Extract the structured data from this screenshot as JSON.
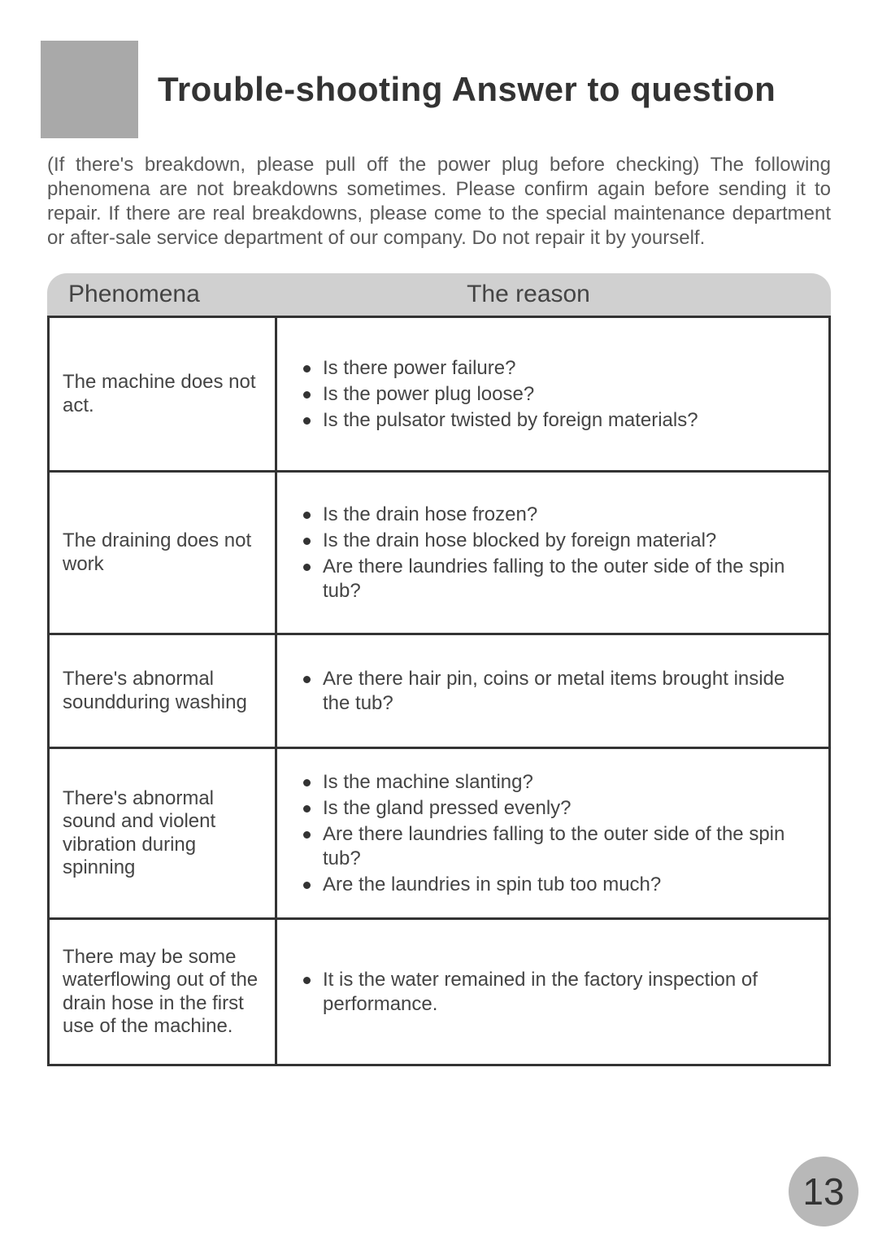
{
  "title": "Trouble-shooting  Answer  to question",
  "intro": "(If  there's  breakdown,  please pull  off the power  plug  before checking) The following phenomena  are not  breakdowns  sometimes.  Please  confirm  again  before sending it to repair.   If there are real  breakdowns,  please  come to  the  special  maintenance department or after-sale service department of our company. Do not repair it by yourself.",
  "table": {
    "header_left": "Phenomena",
    "header_right": "The reason",
    "rows": [
      {
        "phenomenon": "The machine does not act.",
        "reasons": [
          "Is there power failure?",
          "Is the power plug loose?",
          "Is the pulsator twisted by foreign materials?"
        ]
      },
      {
        "phenomenon": "The draining does not work",
        "reasons": [
          "Is the drain hose frozen?",
          "Is the drain hose blocked by foreign material?",
          "Are there laundries falling to the outer side of the spin tub?"
        ]
      },
      {
        "phenomenon": "There's abnormal soundduring washing",
        "reasons": [
          "Are there hair pin, coins or metal items brought inside the tub?"
        ]
      },
      {
        "phenomenon": "There's abnormal sound and violent vibration during spinning",
        "reasons": [
          "Is the machine slanting?",
          "Is the gland pressed evenly?",
          "Are there laundries falling to the outer side of the spin tub?",
          "Are the laundries in spin tub too much?"
        ]
      },
      {
        "phenomenon": "There may be some waterflowing  out  of the  drain hose  in  the first  use  of the machine.",
        "reasons": [
          "It is the water remained in the factory inspection of performance."
        ]
      }
    ]
  },
  "page_number": "13",
  "colors": {
    "header_block": "#a9a9a9",
    "table_header_bg": "#d0d0d0",
    "border": "#333333",
    "text": "#5a5a5a",
    "title_text": "#333333",
    "badge_bg": "#b8b8b8"
  }
}
